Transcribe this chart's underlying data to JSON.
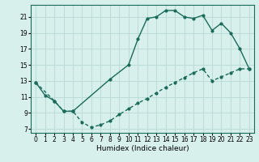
{
  "title": "",
  "xlabel": "Humidex (Indice chaleur)",
  "ylabel": "",
  "bg_color": "#d8f0ec",
  "grid_color": "#b8d8d4",
  "line_color": "#1a6b5a",
  "xlim": [
    -0.5,
    23.5
  ],
  "ylim": [
    6.5,
    22.5
  ],
  "xticks": [
    0,
    1,
    2,
    3,
    4,
    5,
    6,
    7,
    8,
    9,
    10,
    11,
    12,
    13,
    14,
    15,
    16,
    17,
    18,
    19,
    20,
    21,
    22,
    23
  ],
  "yticks": [
    7,
    9,
    11,
    13,
    15,
    17,
    19,
    21
  ],
  "upper_x": [
    0,
    1,
    2,
    3,
    4,
    8,
    10,
    11,
    12,
    13,
    14,
    15,
    16,
    17,
    18,
    19,
    20,
    21,
    22,
    23
  ],
  "upper_y": [
    12.8,
    11.2,
    10.5,
    9.2,
    9.2,
    13.2,
    15.0,
    18.2,
    20.8,
    21.0,
    21.8,
    21.8,
    21.0,
    20.8,
    21.2,
    19.3,
    20.2,
    19.0,
    17.0,
    14.5
  ],
  "lower_x": [
    0,
    2,
    3,
    4,
    5,
    6,
    7,
    8,
    9,
    10,
    11,
    12,
    13,
    14,
    15,
    16,
    17,
    18,
    19,
    20,
    21,
    22,
    23
  ],
  "lower_y": [
    12.8,
    10.5,
    9.2,
    9.2,
    7.8,
    7.2,
    7.5,
    8.0,
    8.8,
    9.5,
    10.2,
    10.8,
    11.5,
    12.2,
    12.8,
    13.4,
    14.0,
    14.5,
    13.0,
    13.5,
    14.0,
    14.5,
    14.5
  ]
}
